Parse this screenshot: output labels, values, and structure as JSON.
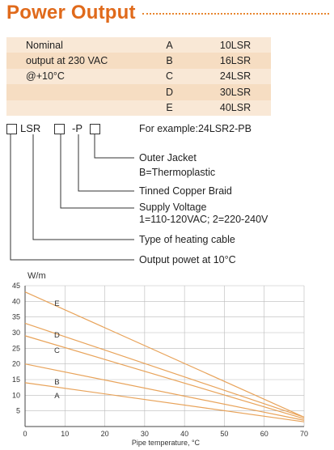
{
  "title": "Power Output",
  "table": {
    "rows": [
      {
        "desc": "Nominal",
        "code": "A",
        "model": "10LSR"
      },
      {
        "desc": "output at 230 VAC",
        "code": "B",
        "model": "16LSR"
      },
      {
        "desc": "@+10°C",
        "code": "C",
        "model": "24LSR"
      },
      {
        "desc": "",
        "code": "D",
        "model": "30LSR"
      },
      {
        "desc": "",
        "code": "E",
        "model": "40LSR"
      }
    ]
  },
  "code": {
    "lsr": "LSR",
    "dash_p": "-P",
    "example": "For example:24LSR2-PB",
    "annotations": [
      "Outer Jacket",
      "B=Thermoplastic",
      "Tinned Copper Braid",
      "Supply Voltage",
      "1=110-120VAC; 2=220-240V",
      "Type of heating cable",
      "Output powet at 10°C"
    ]
  },
  "chart_data": {
    "type": "line",
    "title": "",
    "xlabel": "Pipe temperature, °C",
    "ylabel": "W/m",
    "xlim": [
      0,
      70
    ],
    "ylim": [
      0,
      45
    ],
    "x_ticks": [
      0,
      10,
      20,
      30,
      40,
      50,
      60,
      70
    ],
    "y_ticks": [
      5,
      10,
      15,
      20,
      25,
      30,
      35,
      40,
      45
    ],
    "grid": true,
    "series": [
      {
        "name": "E",
        "x": [
          0,
          70
        ],
        "y": [
          43,
          3
        ]
      },
      {
        "name": "D",
        "x": [
          0,
          70
        ],
        "y": [
          33,
          3
        ]
      },
      {
        "name": "C",
        "x": [
          0,
          70
        ],
        "y": [
          29,
          2.5
        ]
      },
      {
        "name": "B",
        "x": [
          0,
          70
        ],
        "y": [
          20,
          2
        ]
      },
      {
        "name": "A",
        "x": [
          0,
          70
        ],
        "y": [
          14,
          1.5
        ]
      }
    ],
    "curve_labels": [
      {
        "name": "E",
        "x": 8,
        "y": 38.5
      },
      {
        "name": "D",
        "x": 8,
        "y": 28.5
      },
      {
        "name": "C",
        "x": 8,
        "y": 23.5
      },
      {
        "name": "B",
        "x": 8,
        "y": 13.5
      },
      {
        "name": "A",
        "x": 8,
        "y": 9
      }
    ]
  },
  "colors": {
    "accent": "#e06a1b",
    "table_alt": "#f6ddc2",
    "table_base": "#f9e8d6",
    "curve": "#e8a35a",
    "grid": "#bbbbbb"
  }
}
